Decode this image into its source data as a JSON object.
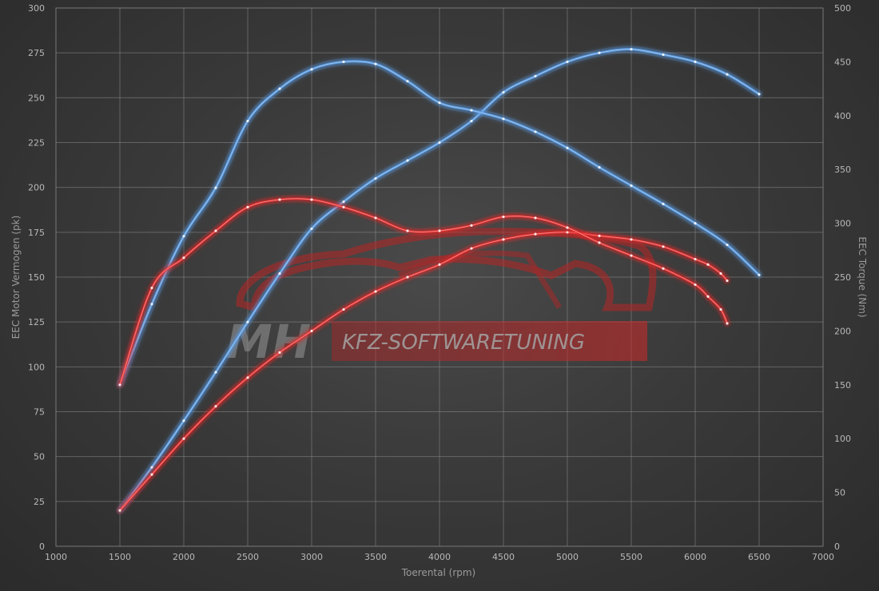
{
  "chart_data": {
    "type": "line",
    "xlabel": "Toerental (rpm)",
    "ylabel_left": "EEC Motor Vermogen (pk)",
    "ylabel_right": "EEC Torque (Nm)",
    "x_ticks": [
      1000,
      1500,
      2000,
      2500,
      3000,
      3500,
      4000,
      4500,
      5000,
      5500,
      6000,
      6500,
      7000
    ],
    "y_left_ticks": [
      0,
      25,
      50,
      75,
      100,
      125,
      150,
      175,
      200,
      225,
      250,
      275,
      300
    ],
    "y_right_ticks": [
      0,
      50,
      100,
      150,
      200,
      250,
      300,
      350,
      400,
      450,
      500
    ],
    "xlim": [
      1000,
      7000
    ],
    "ylim_left": [
      0,
      300
    ],
    "ylim_right": [
      0,
      500
    ],
    "grid": true,
    "colors": {
      "tuned": "#5b9de6",
      "stock": "#e02a2a",
      "background": "#3a3a3a"
    },
    "series": [
      {
        "id": "tuned-power",
        "axis": "left",
        "group": "tuned",
        "x": [
          1500,
          1750,
          2000,
          2250,
          2500,
          2750,
          3000,
          3250,
          3500,
          3750,
          4000,
          4250,
          4500,
          4750,
          5000,
          5250,
          5500,
          5750,
          6000,
          6250,
          6500
        ],
        "y": [
          20,
          44,
          70,
          97,
          125,
          152,
          177,
          192,
          205,
          215,
          225,
          237,
          253,
          262,
          270,
          275,
          277,
          274,
          270,
          263,
          252
        ]
      },
      {
        "id": "stock-power",
        "axis": "left",
        "group": "stock",
        "x": [
          1500,
          1750,
          2000,
          2250,
          2500,
          2750,
          3000,
          3250,
          3500,
          3750,
          4000,
          4250,
          4500,
          4750,
          5000,
          5250,
          5500,
          5750,
          6000,
          6100,
          6200,
          6250
        ],
        "y": [
          20,
          40,
          60,
          78,
          94,
          108,
          120,
          132,
          142,
          150,
          157,
          166,
          171,
          174,
          175,
          173,
          171,
          167,
          160,
          157,
          152,
          148
        ]
      },
      {
        "id": "tuned-torque",
        "axis": "right",
        "group": "tuned",
        "x": [
          1500,
          1750,
          2000,
          2250,
          2500,
          2750,
          3000,
          3250,
          3500,
          3750,
          4000,
          4250,
          4500,
          4750,
          5000,
          5250,
          5500,
          5750,
          6000,
          6250,
          6500
        ],
        "y": [
          150,
          225,
          288,
          333,
          395,
          425,
          443,
          450,
          448,
          432,
          412,
          405,
          397,
          385,
          370,
          352,
          335,
          318,
          300,
          280,
          252
        ]
      },
      {
        "id": "stock-torque",
        "axis": "right",
        "group": "stock",
        "x": [
          1500,
          1750,
          2000,
          2250,
          2500,
          2750,
          3000,
          3250,
          3500,
          3750,
          4000,
          4250,
          4500,
          4750,
          5000,
          5250,
          5500,
          5750,
          6000,
          6100,
          6200,
          6250
        ],
        "y": [
          150,
          240,
          268,
          293,
          315,
          322,
          322,
          315,
          305,
          293,
          293,
          298,
          306,
          305,
          296,
          282,
          270,
          258,
          243,
          232,
          220,
          207
        ]
      }
    ]
  },
  "watermark": {
    "logo_letters": "MH",
    "text": "KFZ-SOFTWARETUNING",
    "color": "#c42a2a"
  }
}
